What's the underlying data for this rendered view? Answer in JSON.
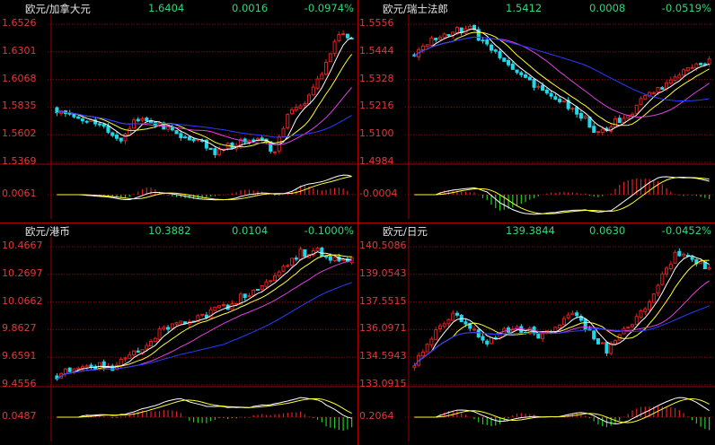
{
  "colors": {
    "up": "#e02020",
    "down": "#22d8e8",
    "ma5": "#ffffff",
    "ma10": "#ffff33",
    "ma20": "#e040e0",
    "ma60": "#2a3cff",
    "axis": "#a00000",
    "pos": "#e02020",
    "neg": "#22cc22"
  },
  "panels": [
    {
      "name": "欧元/加拿大元",
      "price": "1.6404",
      "change": "0.0016",
      "pct": "-0.0974%",
      "ylabels": [
        "1.6526",
        "1.6301",
        "1.6068",
        "1.5835",
        "1.5602",
        "1.5369"
      ],
      "vlabels": [
        "0.0061"
      ],
      "chart_data": {
        "type": "candlestick",
        "ylim": [
          1.5369,
          1.6526
        ],
        "start": 1.583,
        "end": 1.6404,
        "path": [
          [
            0,
            1.583
          ],
          [
            6,
            1.576
          ],
          [
            12,
            1.564
          ],
          [
            16,
            1.556
          ],
          [
            20,
            1.574
          ],
          [
            25,
            1.57
          ],
          [
            30,
            1.56
          ],
          [
            34,
            1.556
          ],
          [
            38,
            1.546
          ],
          [
            42,
            1.552
          ],
          [
            47,
            1.558
          ],
          [
            52,
            1.546
          ],
          [
            55,
            1.58
          ],
          [
            60,
            1.59
          ],
          [
            65,
            1.63
          ],
          [
            68,
            1.648
          ],
          [
            70,
            1.6404
          ]
        ],
        "n": 70
      }
    },
    {
      "name": "欧元/瑞士法郎",
      "price": "1.5412",
      "change": "0.0008",
      "pct": "-0.0519%",
      "ylabels": [
        "1.5556",
        "1.5444",
        "1.5328",
        "1.5216",
        "1.5100",
        "1.4984"
      ],
      "vlabels": [
        "-0.0004"
      ],
      "chart_data": {
        "type": "candlestick",
        "ylim": [
          1.4984,
          1.5556
        ],
        "start": 1.543,
        "end": 1.5412,
        "path": [
          [
            0,
            1.543
          ],
          [
            8,
            1.552
          ],
          [
            14,
            1.554
          ],
          [
            20,
            1.544
          ],
          [
            28,
            1.532
          ],
          [
            34,
            1.526
          ],
          [
            40,
            1.518
          ],
          [
            44,
            1.51
          ],
          [
            48,
            1.515
          ],
          [
            52,
            1.52
          ],
          [
            56,
            1.527
          ],
          [
            62,
            1.533
          ],
          [
            66,
            1.538
          ],
          [
            70,
            1.5412
          ]
        ],
        "n": 70
      }
    },
    {
      "name": "欧元/港币",
      "price": "10.3882",
      "change": "0.0104",
      "pct": "-0.1000%",
      "ylabels": [
        "10.4667",
        "10.2697",
        "10.0662",
        "9.8627",
        "9.6591",
        "9.4556"
      ],
      "vlabels": [
        "0.0487"
      ],
      "chart_data": {
        "type": "candlestick",
        "ylim": [
          9.4556,
          10.4667
        ],
        "start": 9.52,
        "end": 10.3882,
        "path": [
          [
            0,
            9.52
          ],
          [
            8,
            9.6
          ],
          [
            14,
            9.59
          ],
          [
            20,
            9.72
          ],
          [
            26,
            9.86
          ],
          [
            32,
            9.93
          ],
          [
            40,
            10.02
          ],
          [
            46,
            10.13
          ],
          [
            52,
            10.25
          ],
          [
            58,
            10.42
          ],
          [
            62,
            10.44
          ],
          [
            66,
            10.36
          ],
          [
            70,
            10.3882
          ]
        ],
        "n": 70
      }
    },
    {
      "name": "欧元/日元",
      "price": "139.3844",
      "change": "0.0630",
      "pct": "-0.0452%",
      "ylabels": [
        "140.5086",
        "139.0543",
        "137.5515",
        "136.0971",
        "134.5943",
        "133.0915"
      ],
      "vlabels": [
        "0.2064"
      ],
      "chart_data": {
        "type": "candlestick",
        "ylim": [
          133.0915,
          140.5086
        ],
        "start": 134.0,
        "end": 139.3844,
        "path": [
          [
            0,
            134.0
          ],
          [
            6,
            136.0
          ],
          [
            10,
            136.8
          ],
          [
            14,
            136.2
          ],
          [
            18,
            135.3
          ],
          [
            24,
            136.2
          ],
          [
            30,
            135.8
          ],
          [
            34,
            136.3
          ],
          [
            38,
            137.0
          ],
          [
            42,
            136.0
          ],
          [
            46,
            135.0
          ],
          [
            50,
            136.0
          ],
          [
            54,
            137.0
          ],
          [
            58,
            138.5
          ],
          [
            62,
            140.0
          ],
          [
            66,
            139.8
          ],
          [
            70,
            139.3844
          ]
        ],
        "n": 70
      }
    }
  ]
}
